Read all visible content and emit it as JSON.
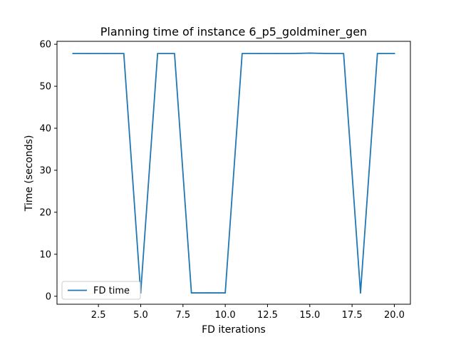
{
  "chart_data": {
    "type": "line",
    "title": "Planning time of instance 6_p5_goldminer_gen",
    "xlabel": "FD iterations",
    "ylabel": "Time (seconds)",
    "xlim": [
      0.05,
      20.95
    ],
    "ylim": [
      -1.9,
      60.7
    ],
    "xticks": [
      2.5,
      5.0,
      7.5,
      10.0,
      12.5,
      15.0,
      17.5,
      20.0
    ],
    "xtick_labels": [
      "2.5",
      "5.0",
      "7.5",
      "10.0",
      "12.5",
      "15.0",
      "17.5",
      "20.0"
    ],
    "yticks": [
      0,
      10,
      20,
      30,
      40,
      50,
      60
    ],
    "ytick_labels": [
      "0",
      "10",
      "20",
      "30",
      "40",
      "50",
      "60"
    ],
    "grid": false,
    "legend": "lower-left",
    "series": [
      {
        "name": "FD time",
        "color": "#1f77b4",
        "x": [
          1,
          2,
          3,
          4,
          5,
          6,
          7,
          8,
          9,
          10,
          11,
          12,
          13,
          14,
          15,
          16,
          17,
          18,
          19,
          20
        ],
        "y": [
          57.8,
          57.8,
          57.8,
          57.8,
          0.8,
          57.8,
          57.8,
          0.8,
          0.8,
          0.8,
          57.8,
          57.8,
          57.8,
          57.8,
          57.9,
          57.8,
          57.8,
          0.8,
          57.8,
          57.8
        ]
      }
    ]
  }
}
